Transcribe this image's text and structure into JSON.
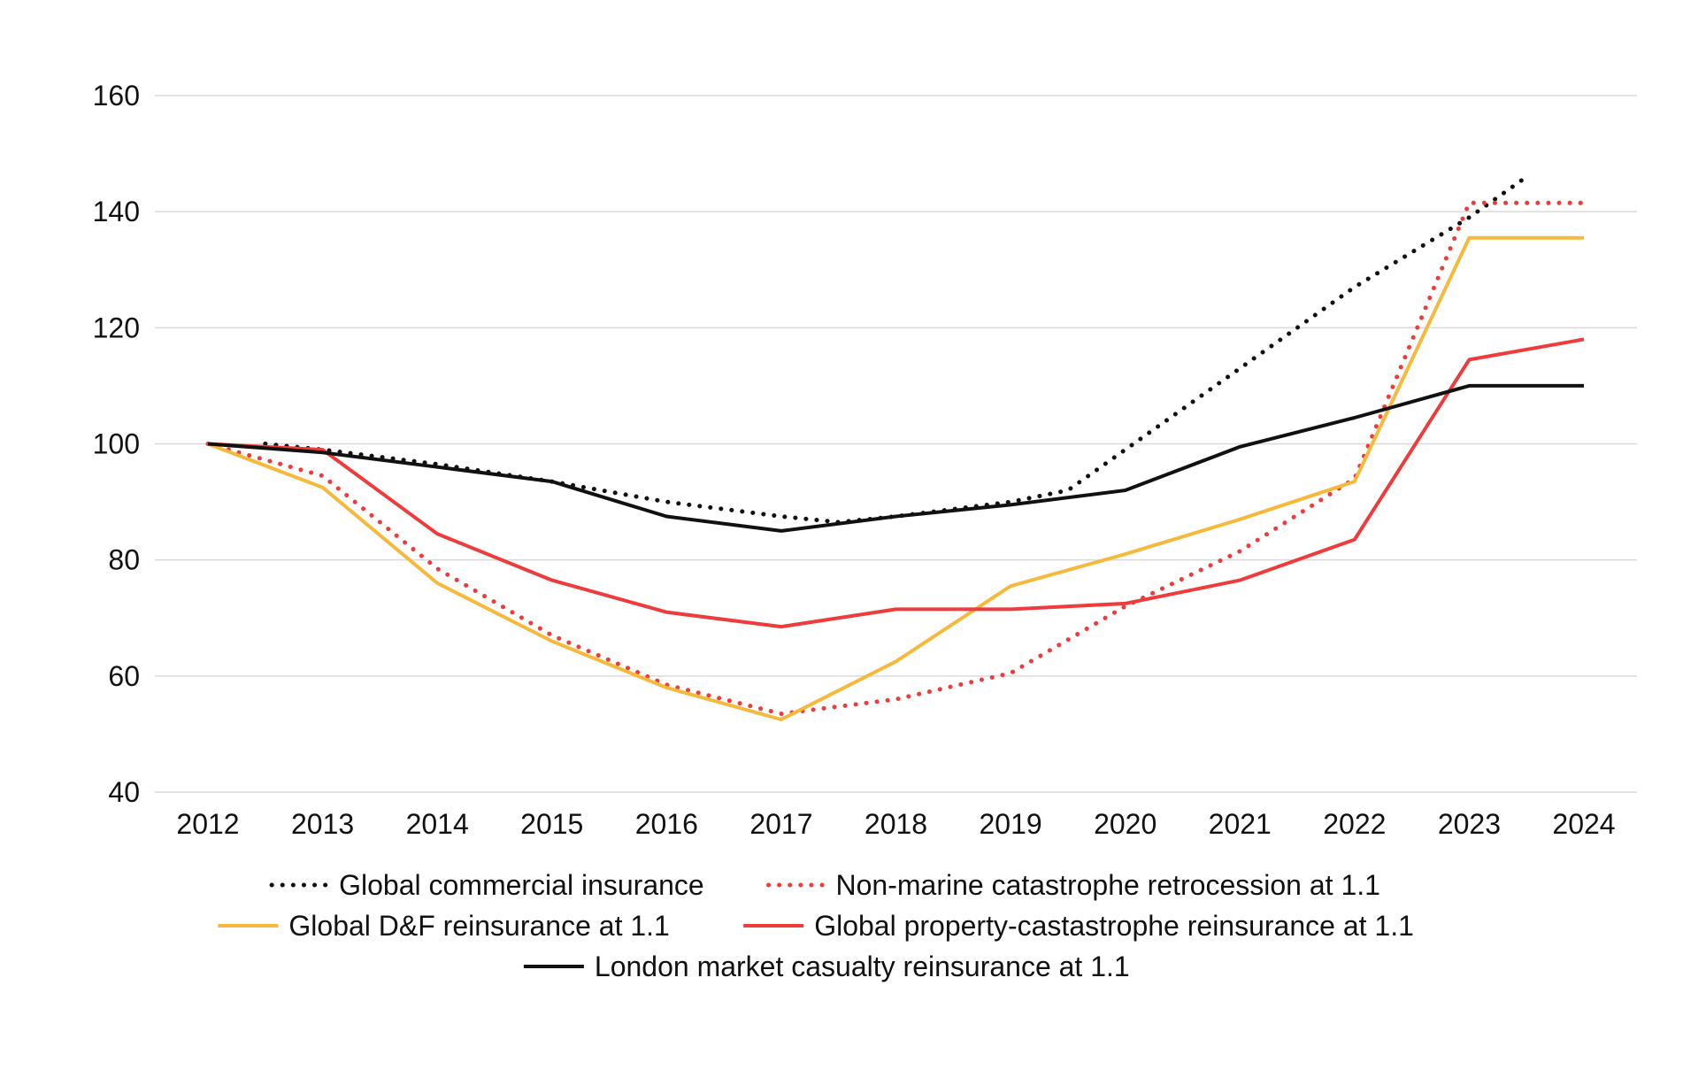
{
  "chart_data": {
    "type": "line",
    "title": "",
    "xlabel": "",
    "ylabel": "",
    "ylim": [
      40,
      160
    ],
    "yticks": [
      40,
      60,
      80,
      100,
      120,
      140,
      160
    ],
    "categories": [
      "2012",
      "2013",
      "2014",
      "2015",
      "2016",
      "2017",
      "2018",
      "2019",
      "2020",
      "2021",
      "2022",
      "2023",
      "2024"
    ],
    "grid": "horizontal",
    "legend_position": "bottom",
    "series": [
      {
        "name": "Global commercial insurance",
        "color": "#111111",
        "style": "dotted",
        "x": [
          2012.5,
          2013,
          2014,
          2015,
          2016,
          2017,
          2017.5,
          2018,
          2019,
          2019.5,
          2020,
          2021,
          2022,
          2023,
          2023.5
        ],
        "values": [
          100,
          99,
          96.5,
          93.5,
          90,
          87.5,
          86.5,
          87.5,
          90,
          92,
          99,
          113,
          127,
          139,
          146
        ]
      },
      {
        "name": "Non-marine catastrophe retrocession at 1.1",
        "color": "#ee3b3b",
        "style": "dotted",
        "x": [
          2012,
          2013,
          2014,
          2015,
          2016,
          2017,
          2018,
          2019,
          2020,
          2021,
          2022,
          2023,
          2024
        ],
        "values": [
          100,
          94.5,
          78.5,
          67,
          58.5,
          53.5,
          56,
          60.5,
          72,
          81.5,
          94,
          141.5,
          141.5
        ]
      },
      {
        "name": "Global D&F reinsurance at 1.1",
        "color": "#f6b93b",
        "style": "solid",
        "x": [
          2012,
          2013,
          2014,
          2015,
          2016,
          2017,
          2018,
          2019,
          2020,
          2021,
          2022,
          2023,
          2024
        ],
        "values": [
          100,
          92.5,
          76,
          66,
          58,
          52.5,
          62.5,
          75.5,
          81,
          87,
          93.5,
          135.5,
          135.5
        ]
      },
      {
        "name": "Global property-castastrophe reinsurance at 1.1",
        "color": "#ee3b3b",
        "style": "solid",
        "x": [
          2012,
          2013,
          2014,
          2015,
          2016,
          2017,
          2018,
          2019,
          2020,
          2021,
          2022,
          2023,
          2024
        ],
        "values": [
          100,
          99,
          84.5,
          76.5,
          71,
          68.5,
          71.5,
          71.5,
          72.5,
          76.5,
          83.5,
          114.5,
          118
        ]
      },
      {
        "name": "London market casualty reinsurance at 1.1",
        "color": "#111111",
        "style": "solid",
        "x": [
          2012,
          2013,
          2014,
          2015,
          2016,
          2017,
          2018,
          2019,
          2020,
          2021,
          2022,
          2023,
          2024
        ],
        "values": [
          100,
          98.5,
          96,
          93.5,
          87.5,
          85,
          87.5,
          89.5,
          92,
          99.5,
          104.5,
          110,
          110
        ]
      }
    ],
    "legend_rows": [
      [
        0,
        1
      ],
      [
        2,
        3
      ],
      [
        4
      ]
    ]
  }
}
